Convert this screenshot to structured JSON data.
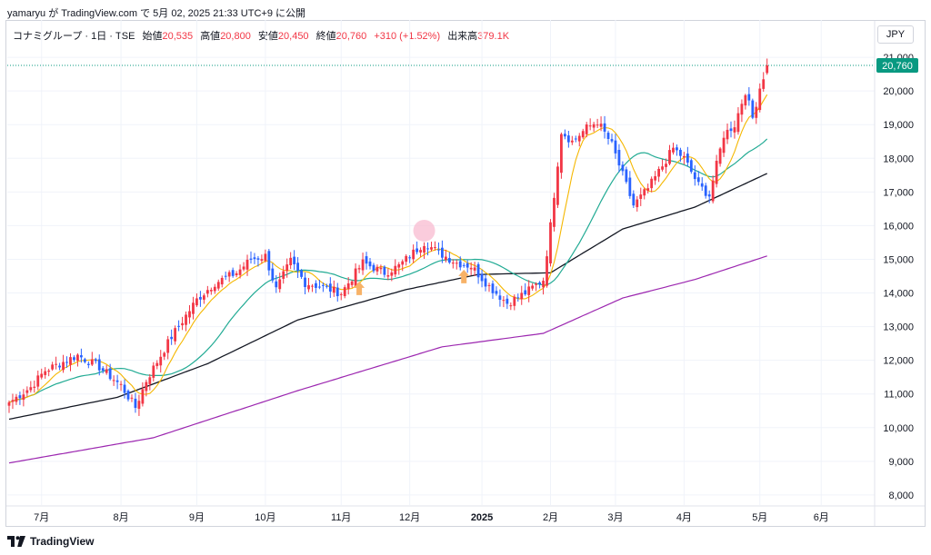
{
  "caption": "yamaryu が TradingView.com で 5月 02, 2025 21:33 UTC+9 に公開",
  "legend": {
    "symbol": "コナミグループ · 1日 · TSE",
    "open_label": "始値",
    "open_value": "20,535",
    "high_label": "高値",
    "high_value": "20,800",
    "low_label": "安値",
    "low_value": "20,450",
    "close_label": "終値",
    "close_value": "20,760",
    "change": "+310 (+1.52%)",
    "volume_label": "出来高",
    "volume_value": "379.1K"
  },
  "currency_button": "JPY",
  "last_price_tag": "20,760",
  "footer_brand": "TradingView",
  "colors": {
    "up": "#f23645",
    "down": "#2962ff",
    "ma_fast": "#f5b700",
    "ma_mid": "#22ab94",
    "ma_slow": "#131722",
    "ma_long": "#9c27b0",
    "last_price": "#089981",
    "marker_arrow": "#f7b267",
    "marker_circle": "#f8bbd0"
  },
  "chart_data": {
    "type": "candlestick",
    "ylim": [
      7700,
      21300
    ],
    "y_ticks": [
      8000,
      9000,
      10000,
      11000,
      12000,
      13000,
      14000,
      15000,
      16000,
      17000,
      18000,
      19000,
      20000,
      21000
    ],
    "y_tick_labels": [
      "8,000",
      "9,000",
      "10,000",
      "11,000",
      "12,000",
      "13,000",
      "14,000",
      "15,000",
      "16,000",
      "17,000",
      "18,000",
      "19,000",
      "20,000",
      "21,000"
    ],
    "x_ticks": [
      {
        "label": "7月",
        "bar": 9,
        "bold": false
      },
      {
        "label": "8月",
        "bar": 31,
        "bold": false
      },
      {
        "label": "9月",
        "bar": 52,
        "bold": false
      },
      {
        "label": "10月",
        "bar": 71,
        "bold": false
      },
      {
        "label": "11月",
        "bar": 92,
        "bold": false
      },
      {
        "label": "12月",
        "bar": 111,
        "bold": false
      },
      {
        "label": "2025",
        "bar": 131,
        "bold": true
      },
      {
        "label": "2月",
        "bar": 150,
        "bold": false
      },
      {
        "label": "3月",
        "bar": 168,
        "bold": false
      },
      {
        "label": "4月",
        "bar": 187,
        "bold": false
      },
      {
        "label": "5月",
        "bar": 208,
        "bold": false
      },
      {
        "label": "6月",
        "bar": 225,
        "bold": false
      }
    ],
    "anchors": [
      {
        "bar": 0,
        "close": 10750
      },
      {
        "bar": 6,
        "close": 11200
      },
      {
        "bar": 10,
        "close": 11700
      },
      {
        "bar": 19,
        "close": 12150
      },
      {
        "bar": 25,
        "close": 11800
      },
      {
        "bar": 31,
        "close": 11250
      },
      {
        "bar": 35,
        "close": 10600
      },
      {
        "bar": 38,
        "close": 11400
      },
      {
        "bar": 45,
        "close": 12700
      },
      {
        "bar": 52,
        "close": 13800
      },
      {
        "bar": 57,
        "close": 14300
      },
      {
        "bar": 63,
        "close": 14600
      },
      {
        "bar": 67,
        "close": 15000
      },
      {
        "bar": 71,
        "close": 15100
      },
      {
        "bar": 74,
        "close": 14100
      },
      {
        "bar": 78,
        "close": 14950
      },
      {
        "bar": 82,
        "close": 14300
      },
      {
        "bar": 86,
        "close": 14200
      },
      {
        "bar": 92,
        "close": 14000
      },
      {
        "bar": 98,
        "close": 14900
      },
      {
        "bar": 104,
        "close": 14600
      },
      {
        "bar": 108,
        "close": 14800
      },
      {
        "bar": 115,
        "close": 15500
      },
      {
        "bar": 119,
        "close": 15200
      },
      {
        "bar": 124,
        "close": 14900
      },
      {
        "bar": 128,
        "close": 14800
      },
      {
        "bar": 133,
        "close": 14200
      },
      {
        "bar": 138,
        "close": 13700
      },
      {
        "bar": 143,
        "close": 14000
      },
      {
        "bar": 148,
        "close": 14400
      },
      {
        "bar": 150,
        "close": 16000
      },
      {
        "bar": 153,
        "close": 18800
      },
      {
        "bar": 156,
        "close": 18500
      },
      {
        "bar": 160,
        "close": 18900
      },
      {
        "bar": 163,
        "close": 19100
      },
      {
        "bar": 167,
        "close": 18400
      },
      {
        "bar": 170,
        "close": 17500
      },
      {
        "bar": 173,
        "close": 16600
      },
      {
        "bar": 177,
        "close": 17100
      },
      {
        "bar": 180,
        "close": 17600
      },
      {
        "bar": 184,
        "close": 18300
      },
      {
        "bar": 187,
        "close": 18000
      },
      {
        "bar": 191,
        "close": 17200
      },
      {
        "bar": 194,
        "close": 16900
      },
      {
        "bar": 198,
        "close": 18700
      },
      {
        "bar": 201,
        "close": 19000
      },
      {
        "bar": 204,
        "close": 20000
      },
      {
        "bar": 206,
        "close": 19200
      },
      {
        "bar": 208,
        "close": 20100
      },
      {
        "bar": 210,
        "close": 20760
      }
    ],
    "ma_long": [
      {
        "bar": 0,
        "value": 8950
      },
      {
        "bar": 40,
        "value": 9700
      },
      {
        "bar": 80,
        "value": 11100
      },
      {
        "bar": 120,
        "value": 12400
      },
      {
        "bar": 148,
        "value": 12800
      },
      {
        "bar": 170,
        "value": 13850
      },
      {
        "bar": 190,
        "value": 14400
      },
      {
        "bar": 210,
        "value": 15100
      }
    ],
    "ma_slow": [
      {
        "bar": 0,
        "value": 10250
      },
      {
        "bar": 30,
        "value": 10900
      },
      {
        "bar": 55,
        "value": 11900
      },
      {
        "bar": 80,
        "value": 13200
      },
      {
        "bar": 110,
        "value": 14100
      },
      {
        "bar": 130,
        "value": 14550
      },
      {
        "bar": 150,
        "value": 14600
      },
      {
        "bar": 170,
        "value": 15900
      },
      {
        "bar": 190,
        "value": 16550
      },
      {
        "bar": 210,
        "value": 17550
      }
    ],
    "markers": [
      {
        "type": "circle",
        "bar": 115,
        "value": 15850
      },
      {
        "type": "arrow",
        "bar": 97,
        "value": 14100
      },
      {
        "type": "arrow",
        "bar": 126,
        "value": 14450
      }
    ]
  }
}
